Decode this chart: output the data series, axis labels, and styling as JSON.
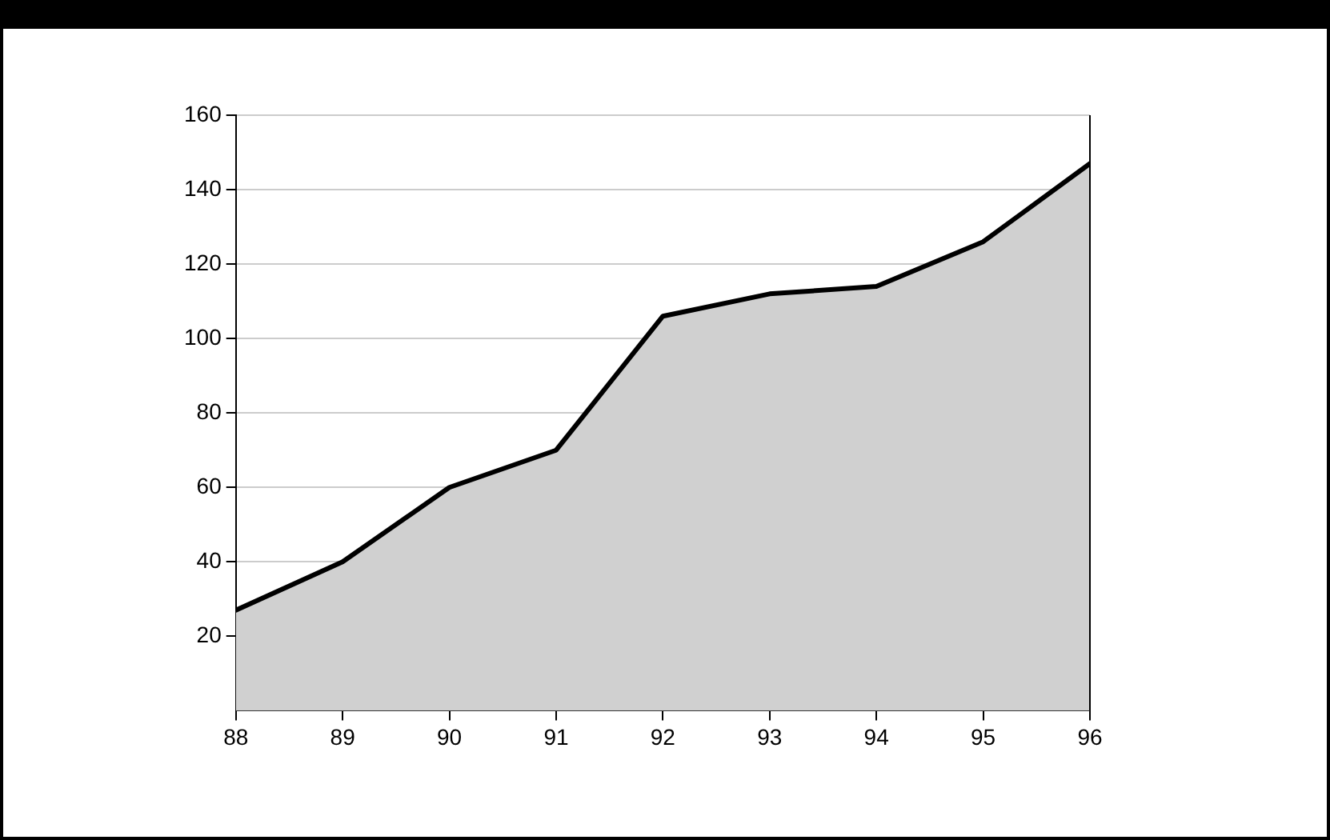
{
  "chart_data": {
    "type": "area",
    "x": [
      88,
      89,
      90,
      91,
      92,
      93,
      94,
      95,
      96
    ],
    "series": [
      {
        "color": "#d0d0d0",
        "values": [
          27,
          40,
          60,
          70,
          106,
          112,
          114,
          126,
          147
        ]
      }
    ],
    "xlim": [
      88,
      96
    ],
    "xticks": [
      88,
      89,
      90,
      91,
      92,
      93,
      94,
      95,
      96
    ],
    "ylim": [
      0,
      160
    ],
    "yticks": [
      20,
      40,
      60,
      80,
      100,
      120,
      140,
      160
    ],
    "grid": "y",
    "legend": false,
    "marker": "none"
  }
}
